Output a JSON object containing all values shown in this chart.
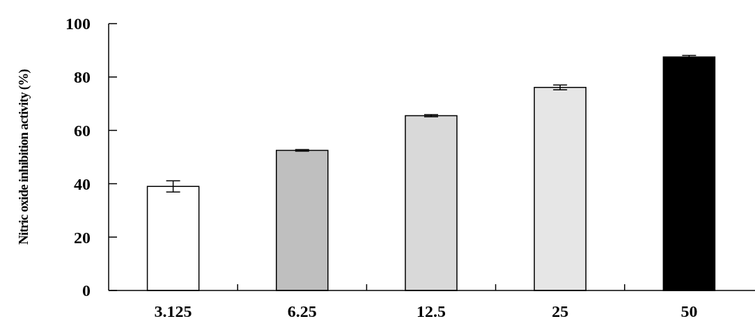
{
  "chart_data": {
    "type": "bar",
    "ylabel": "Nitric oxide inhibition activity (%)",
    "categories": [
      "3.125",
      "6.25",
      "12.5",
      "25",
      "50"
    ],
    "values": [
      39.0,
      52.5,
      65.5,
      76.1,
      87.5
    ],
    "errors": [
      2.1,
      0.3,
      0.4,
      0.9,
      0.6
    ],
    "colors": [
      "#ffffff",
      "#bfbfbf",
      "#d9d9d9",
      "#e6e6e6",
      "#000000"
    ],
    "ylim": [
      0,
      100
    ],
    "yticks": [
      0,
      20,
      40,
      60,
      80,
      100
    ]
  }
}
